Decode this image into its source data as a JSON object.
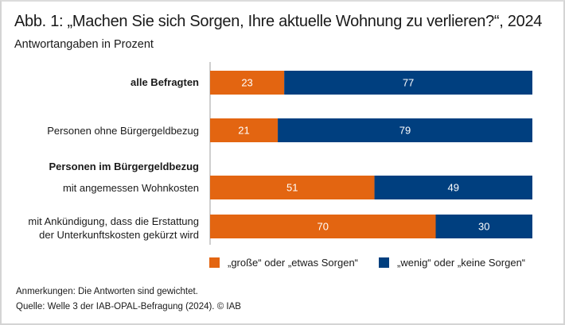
{
  "chart_data": {
    "type": "bar",
    "orientation": "horizontal",
    "stacked": true,
    "title": "Abb. 1: „Machen Sie sich Sorgen, Ihre aktuelle Wohnung zu verlieren?“, 2024",
    "subtitle": "Antwortangaben in Prozent",
    "xlabel": "",
    "ylabel": "",
    "xlim": [
      0,
      100
    ],
    "grid": false,
    "legend_position": "bottom",
    "categories": [
      "alle Befragten",
      "Personen ohne Bürgergeldbezug",
      "mit angemessen Wohnkosten",
      "mit Ankündigung, dass die Erstattung der Unterkunftskosten gekürzt wird"
    ],
    "category_lines": [
      [
        "alle Befragten"
      ],
      [
        "Personen ohne Bürgergeldbezug"
      ],
      [
        "mit angemessen Wohnkosten"
      ],
      [
        "mit Ankündigung, dass die Erstattung",
        "der Unterkunftskosten gekürzt wird"
      ]
    ],
    "group_heading": "Personen im Bürgergeldbezug",
    "series": [
      {
        "name": "„große“ oder „etwas Sorgen“",
        "color": "#e36511",
        "values": [
          23,
          21,
          51,
          70
        ]
      },
      {
        "name": "„wenig“ oder „keine Sorgen“",
        "color": "#003f7f",
        "values": [
          77,
          79,
          49,
          30
        ]
      }
    ]
  },
  "footer": {
    "note": "Anmerkungen: Die Antworten sind gewichtet.",
    "source": "Quelle: Welle 3 der IAB-OPAL-Befragung (2024). © IAB"
  }
}
